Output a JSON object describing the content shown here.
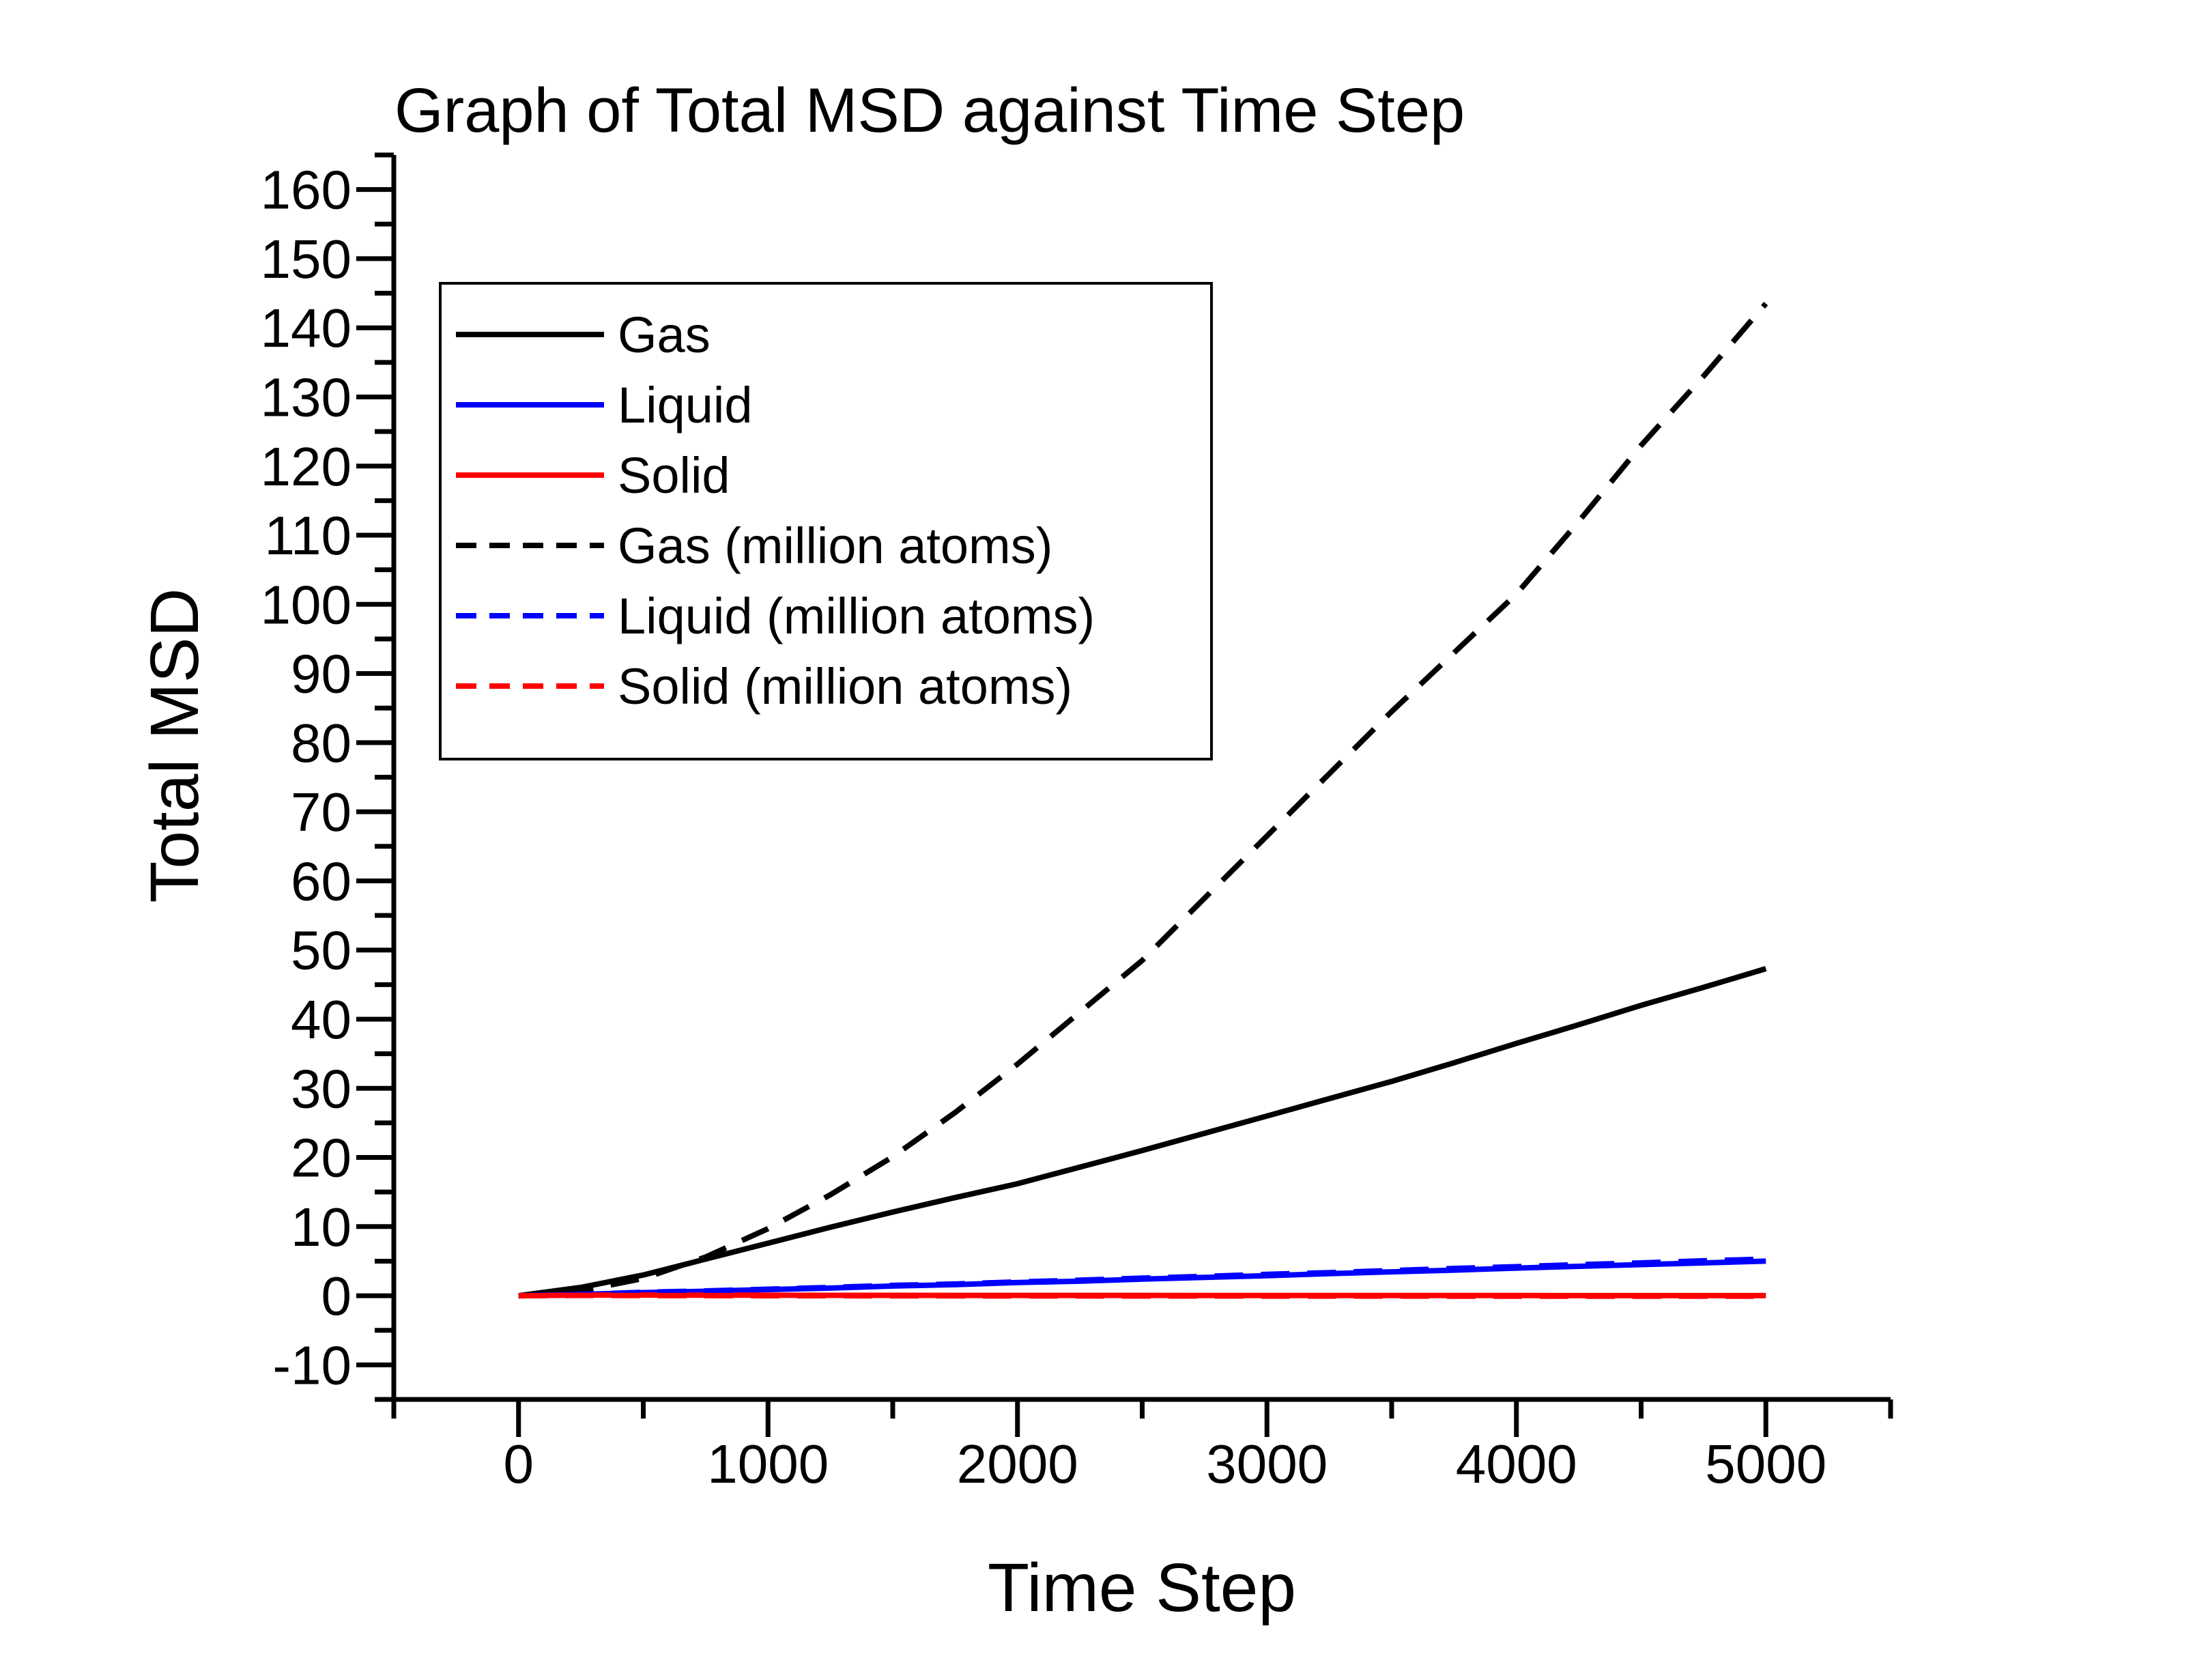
{
  "chart_data": {
    "type": "line",
    "title": "Graph of Total MSD against Time Step",
    "xlabel": "Time Step",
    "ylabel": "Total MSD",
    "xlim": [
      -500,
      5500
    ],
    "ylim": [
      -15,
      165
    ],
    "x_major_ticks": [
      0,
      1000,
      2000,
      3000,
      4000,
      5000
    ],
    "x_minor_ticks": [
      -500,
      500,
      1500,
      2500,
      3500,
      4500,
      5500
    ],
    "y_major_ticks": [
      -10,
      0,
      10,
      20,
      30,
      40,
      50,
      60,
      70,
      80,
      90,
      100,
      110,
      120,
      130,
      140,
      150,
      160
    ],
    "y_minor_ticks": [
      -15,
      -5,
      5,
      15,
      25,
      35,
      45,
      55,
      65,
      75,
      85,
      95,
      105,
      115,
      125,
      135,
      145,
      155,
      165
    ],
    "grid": false,
    "legend_position": "upper-left-inside",
    "x": [
      0,
      250,
      500,
      750,
      1000,
      1250,
      1500,
      1750,
      2000,
      2250,
      2500,
      2750,
      3000,
      3250,
      3500,
      3750,
      4000,
      4250,
      4500,
      4750,
      5000
    ],
    "series": [
      {
        "name": "Gas",
        "color": "#000000",
        "style": "solid",
        "values": [
          0,
          1.2,
          3.0,
          5.3,
          7.6,
          9.9,
          12.1,
          14.2,
          16.2,
          18.6,
          21.0,
          23.5,
          26.0,
          28.5,
          31.0,
          33.7,
          36.5,
          39.2,
          42.0,
          44.6,
          47.3
        ]
      },
      {
        "name": "Liquid",
        "color": "#0000ff",
        "style": "solid",
        "values": [
          0,
          0.2,
          0.45,
          0.65,
          0.9,
          1.1,
          1.4,
          1.6,
          1.9,
          2.1,
          2.4,
          2.65,
          2.9,
          3.2,
          3.45,
          3.7,
          4.0,
          4.25,
          4.5,
          4.75,
          5.0
        ]
      },
      {
        "name": "Solid",
        "color": "#ff0000",
        "style": "solid",
        "values": [
          0,
          0.1,
          0.1,
          0.08,
          0.08,
          0.06,
          0.06,
          0.05,
          0.05,
          0.05,
          0.05,
          0.04,
          0.04,
          0.04,
          0.03,
          0.03,
          0.03,
          0.02,
          0.02,
          0.02,
          0.02
        ]
      },
      {
        "name": "Gas (million atoms)",
        "color": "#000000",
        "style": "dashed",
        "values": [
          0,
          0.7,
          2.5,
          5.6,
          9.7,
          14.6,
          20.1,
          26.5,
          33.5,
          41.0,
          48.5,
          57.5,
          66.5,
          75.5,
          84.5,
          93.0,
          101.5,
          112.0,
          123.0,
          133.0,
          143.5
        ]
      },
      {
        "name": "Liquid (million atoms)",
        "color": "#0000ff",
        "style": "dashed",
        "values": [
          0,
          0.2,
          0.5,
          0.7,
          0.95,
          1.2,
          1.5,
          1.7,
          2.0,
          2.25,
          2.55,
          2.8,
          3.1,
          3.35,
          3.65,
          3.95,
          4.2,
          4.5,
          4.75,
          5.05,
          5.3
        ]
      },
      {
        "name": "Solid (million atoms)",
        "color": "#ff0000",
        "style": "dashed",
        "values": [
          0,
          0.05,
          0.03,
          0.02,
          0,
          0,
          -0.02,
          -0.02,
          -0.03,
          -0.03,
          -0.04,
          -0.04,
          -0.05,
          -0.05,
          -0.05,
          -0.06,
          -0.06,
          -0.06,
          -0.07,
          -0.07,
          -0.07
        ]
      }
    ]
  }
}
